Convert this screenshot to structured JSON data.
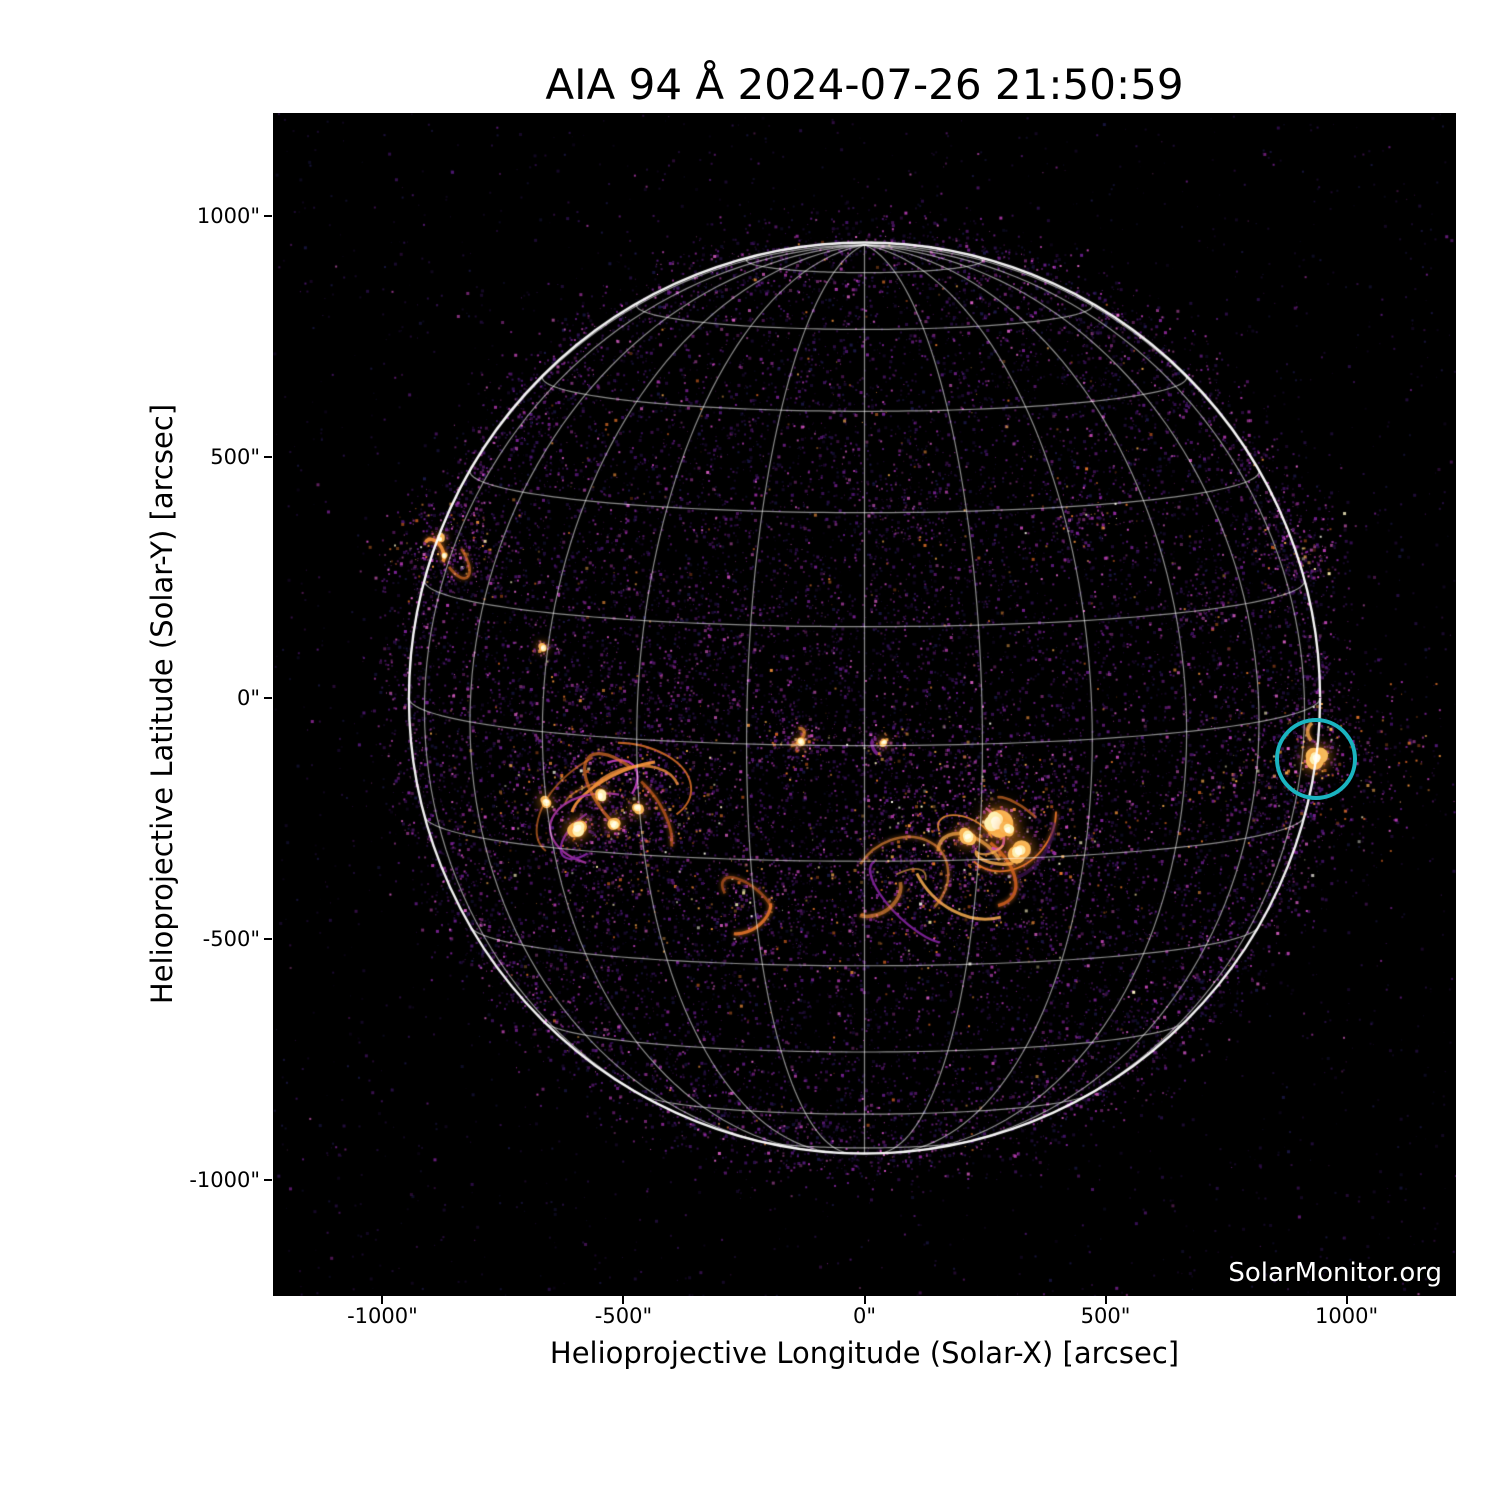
{
  "title": "AIA 94 Å 2024-07-26 21:50:59",
  "watermark": "SolarMonitor.org",
  "axes": {
    "xlabel": "Helioprojective Longitude (Solar-X) [arcsec]",
    "ylabel": "Helioprojective Latitude (Solar-Y) [arcsec]"
  },
  "chart_data": {
    "type": "heatmap",
    "description": "SDO/AIA 94 Angstrom full-disk solar image with heliographic grid overlay and flagged active region",
    "instrument": "AIA 94 Å",
    "datetime": "2024-07-26 21:50:59",
    "x_range_arcsec": [
      -1227,
      1227
    ],
    "y_range_arcsec": [
      -1240,
      1213
    ],
    "x_ticks": [
      {
        "value": -1000,
        "label": "-1000\""
      },
      {
        "value": -500,
        "label": "-500\""
      },
      {
        "value": 0,
        "label": "0\""
      },
      {
        "value": 500,
        "label": "500\""
      },
      {
        "value": 1000,
        "label": "1000\""
      }
    ],
    "y_ticks": [
      {
        "value": 1000,
        "label": "1000\""
      },
      {
        "value": 500,
        "label": "500\""
      },
      {
        "value": 0,
        "label": "0\""
      },
      {
        "value": -500,
        "label": "-500\""
      },
      {
        "value": -1000,
        "label": "-1000\""
      }
    ],
    "sun": {
      "radius_arcsec": 945,
      "b0_deg": 6,
      "grid_spacing_deg": 15,
      "grid_color": "rgba(255,255,255,0.55)",
      "limb_color": "rgba(255,255,255,0.95)"
    },
    "annotation_circle": {
      "x_arcsec": 938,
      "y_arcsec": -127,
      "radius_arcsec": 77,
      "color": "#1ab4c0",
      "stroke_px": 4.5
    },
    "background_color": "#000000",
    "palette": {
      "faint": [
        "#1b0b33",
        "#261044",
        "#321356",
        "#1e1a4e"
      ],
      "purple": [
        "#45136b",
        "#571a7e",
        "#6b1e8f",
        "#7f239a"
      ],
      "magenta": [
        "#9a2ba4",
        "#b43ab2",
        "#cc4ac0",
        "#e263ce"
      ],
      "orange": [
        "#c65a1f",
        "#e5742b",
        "#f2913c",
        "#f9ad52"
      ],
      "bright": [
        "#fce9a6",
        "#fdf4c5",
        "#fffdee"
      ]
    },
    "noise": {
      "uniform": 3000,
      "disk": 13000,
      "halo": 3800
    },
    "active_regions": [
      {
        "id": "AR-east-cluster",
        "x": -528,
        "y": -232,
        "spread_as": 115,
        "speckles": 850,
        "arcs": 10,
        "arc_r": [
          35,
          150
        ],
        "knots": [
          [
            -596,
            -270,
            12
          ],
          [
            -548,
            -203,
            9
          ],
          [
            -470,
            -228,
            8
          ],
          [
            -660,
            -215,
            7
          ],
          [
            -520,
            -262,
            8
          ]
        ]
      },
      {
        "id": "AR-center-cluster",
        "x": 258,
        "y": -292,
        "spread_as": 140,
        "speckles": 1000,
        "arcs": 10,
        "arc_r": [
          40,
          170
        ],
        "knots": [
          [
            272,
            -258,
            20
          ],
          [
            320,
            -318,
            13
          ],
          [
            214,
            -286,
            10
          ],
          [
            298,
            -272,
            9
          ]
        ]
      },
      {
        "id": "SW-arc-field",
        "x": 60,
        "y": -420,
        "spread_as": 95,
        "speckles": 300,
        "arcs": 4,
        "arc_r": [
          60,
          120
        ],
        "knots": []
      },
      {
        "id": "AR-CM-small",
        "x": -133,
        "y": -95,
        "spread_as": 32,
        "speckles": 120,
        "arcs": 1,
        "arc_r": [
          15,
          32
        ],
        "knots": [
          [
            -133,
            -90,
            6
          ]
        ]
      },
      {
        "id": "AR-center-dot",
        "x": 38,
        "y": -95,
        "spread_as": 28,
        "speckles": 90,
        "arcs": 1,
        "arc_r": [
          12,
          26
        ],
        "knots": [
          [
            40,
            -92,
            5
          ]
        ]
      },
      {
        "id": "AR-east-limb",
        "x": -874,
        "y": 311,
        "spread_as": 60,
        "speckles": 260,
        "arcs": 2,
        "arc_r": [
          20,
          55
        ],
        "knots": [
          [
            -880,
            330,
            5
          ],
          [
            -872,
            295,
            4
          ]
        ]
      },
      {
        "id": "flare-west-limb",
        "x": 938,
        "y": -127,
        "spread_as": 120,
        "speckles": 520,
        "arcs": 1,
        "arc_r": [
          18,
          40
        ],
        "knots": [
          [
            938,
            -126,
            12
          ]
        ]
      },
      {
        "id": "west-limb-patch",
        "x": 908,
        "y": 317,
        "spread_as": 50,
        "speckles": 160,
        "arcs": 0,
        "arc_r": [
          0,
          0
        ],
        "knots": []
      },
      {
        "id": "NW-patch",
        "x": 457,
        "y": 380,
        "spread_as": 55,
        "speckles": 100,
        "arcs": 0,
        "arc_r": [
          0,
          0
        ],
        "knots": []
      },
      {
        "id": "S-wisps",
        "x": -240,
        "y": -430,
        "spread_as": 85,
        "speckles": 220,
        "arcs": 2,
        "arc_r": [
          25,
          70
        ],
        "knots": []
      },
      {
        "id": "E-mid-dot",
        "x": -667,
        "y": 104,
        "spread_as": 20,
        "speckles": 40,
        "arcs": 0,
        "arc_r": [
          0,
          0
        ],
        "knots": [
          [
            -667,
            104,
            4
          ]
        ]
      },
      {
        "id": "NE-wisp",
        "x": 75,
        "y": 390,
        "spread_as": 50,
        "speckles": 80,
        "arcs": 0,
        "arc_r": [
          0,
          0
        ],
        "knots": [],
        "faint": true
      },
      {
        "id": "NE-limb-wisp",
        "x": 700,
        "y": 210,
        "spread_as": 55,
        "speckles": 90,
        "arcs": 0,
        "arc_r": [
          0,
          0
        ],
        "knots": [],
        "faint": true
      },
      {
        "id": "quiet-texture-E",
        "x": -350,
        "y": 30,
        "spread_as": 200,
        "speckles": 600,
        "arcs": 0,
        "arc_r": [
          0,
          0
        ],
        "knots": [],
        "faint": true
      }
    ]
  }
}
